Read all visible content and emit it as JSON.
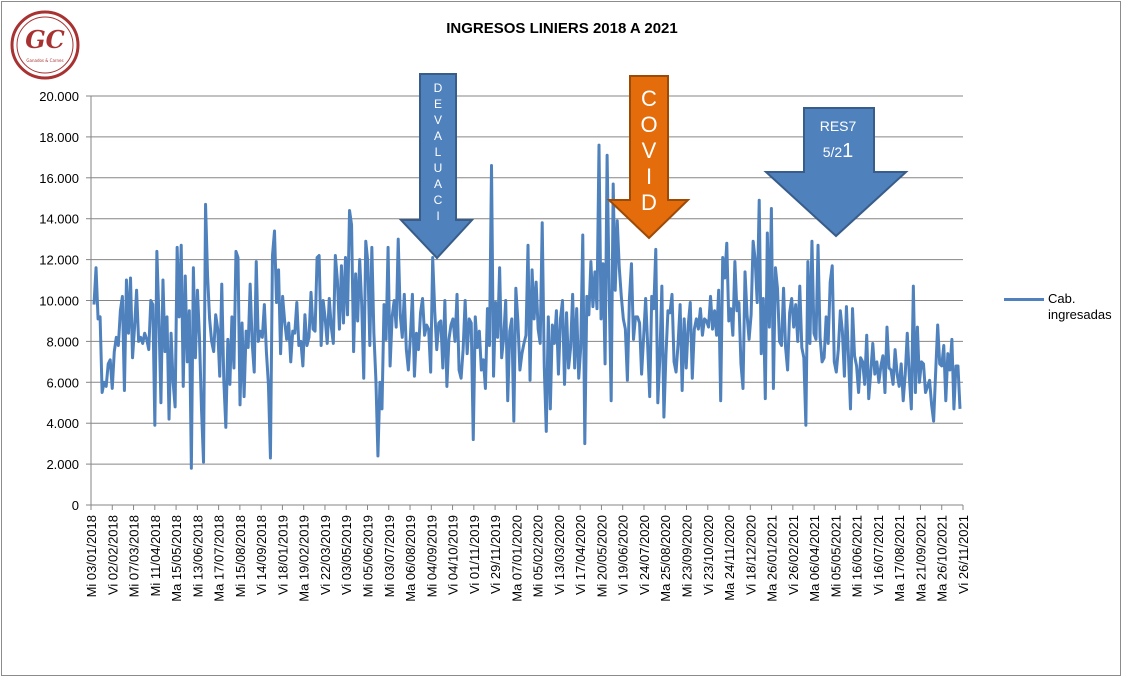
{
  "logo": {
    "text": "GC",
    "subtitle": "Ganados & Carnes",
    "color": "#a83232"
  },
  "chart_data": {
    "type": "line",
    "title": "INGRESOS LINIERS  2018 A 2021",
    "xlabel": "",
    "ylabel": "",
    "ylim": [
      0,
      20000
    ],
    "yticks": [
      "0",
      "2.000",
      "4.000",
      "6.000",
      "8.000",
      "10.000",
      "12.000",
      "14.000",
      "16.000",
      "18.000",
      "20.000"
    ],
    "grid": true,
    "legend": "right",
    "xticks": [
      "Mi 03/01/2018",
      "Vi 02/02/2018",
      "Mi 07/03/2018",
      "Mi 11/04/2018",
      "Ma 15/05/2018",
      "Mi 13/06/2018",
      "Ma 17/07/2018",
      "Mi 15/08/2018",
      "Vi 14/09/2018",
      "Vi 18/01/2019",
      "Ma 19/02/2019",
      "Vi 22/03/2019",
      "Vi 03/05/2019",
      "Mi 05/06/2019",
      "Mi 03/07/2019",
      "Ma 06/08/2019",
      "Mi 04/09/2019",
      "Vi 04/10/2019",
      "Vi 01/11/2019",
      "Vi 29/11/2019",
      "Ma 07/01/2020",
      "Mi 05/02/2020",
      "Vi 13/03/2020",
      "Vi 17/04/2020",
      "Mi 20/05/2020",
      "Vi 19/06/2020",
      "Vi 24/07/2020",
      "Ma 25/08/2020",
      "Mi 23/09/2020",
      "Vi 23/10/2020",
      "Ma 24/11/2020",
      "Vi 18/12/2020",
      "Ma 26/01/2021",
      "Vi 26/02/2021",
      "Ma 06/04/2021",
      "Mi 05/05/2021",
      "Mi 16/06/2021",
      "Vi 16/07/2021",
      "Ma 17/08/2021",
      "Ma 21/09/2021",
      "Ma 26/10/2021",
      "Vi 26/11/2021"
    ],
    "series": [
      {
        "name": "Cab. ingresadas",
        "color": "#4f81bd",
        "values": [
          9800,
          11600,
          9100,
          9200,
          5500,
          6000,
          5800,
          6900,
          7100,
          5700,
          7500,
          8200,
          7800,
          9500,
          10200,
          5600,
          11000,
          8400,
          11100,
          7200,
          8700,
          10500,
          8000,
          8200,
          7900,
          8400,
          8100,
          7600,
          10000,
          9800,
          3900,
          12400,
          9200,
          5000,
          11000,
          7500,
          9200,
          4200,
          8400,
          6000,
          4800,
          12600,
          9200,
          12700,
          5800,
          11200,
          7000,
          9500,
          1800,
          11600,
          7200,
          10500,
          8200,
          4700,
          2100,
          14700,
          11200,
          9100,
          8000,
          7500,
          9300,
          8600,
          6300,
          10800,
          6100,
          3800,
          8100,
          5900,
          9200,
          6700,
          12400,
          12100,
          4900,
          8900,
          5300,
          8500,
          7700,
          10800,
          7900,
          6500,
          11900,
          8000,
          8500,
          8200,
          9800,
          7500,
          5900,
          2300,
          12200,
          13400,
          9900,
          11500,
          7400,
          10200,
          9000,
          8100,
          8900,
          7000,
          8500,
          8400,
          9900,
          7800,
          8000,
          6800,
          9300,
          7800,
          8200,
          10400,
          8600,
          8500,
          12100,
          12200,
          7800,
          10000,
          9100,
          7900,
          10100,
          8700,
          7900,
          12200,
          11000,
          8600,
          11700,
          8900,
          12100,
          9300,
          14400,
          13700,
          7500,
          11300,
          9000,
          12000,
          9800,
          6200,
          12900,
          11900,
          7800,
          12600,
          8400,
          6100,
          2400,
          6000,
          4700,
          9800,
          8100,
          12600,
          6800,
          9200,
          10000,
          8700,
          13000,
          9300,
          8200,
          10300,
          7600,
          6600,
          8200,
          10300,
          6300,
          8400,
          7600,
          9400,
          10100,
          8300,
          8800,
          8600,
          6500,
          12100,
          9500,
          7600,
          8900,
          9000,
          6700,
          10000,
          5800,
          8100,
          8800,
          9100,
          8000,
          10300,
          6600,
          6200,
          7600,
          10000,
          7400,
          9100,
          8900,
          3200,
          9200,
          7700,
          8500,
          6600,
          7100,
          5700,
          9600,
          7800,
          16600,
          6300,
          9900,
          8200,
          11600,
          7200,
          8200,
          10000,
          5100,
          8500,
          9100,
          4100,
          10600,
          9000,
          6600,
          7400,
          7900,
          8300,
          12700,
          6100,
          11500,
          9100,
          10900,
          8600,
          7900,
          13800,
          6800,
          3600,
          9200,
          4700,
          8800,
          7900,
          9500,
          6400,
          9100,
          10000,
          5900,
          9400,
          6700,
          7700,
          10300,
          6700,
          9600,
          6200,
          7700,
          13200,
          3000,
          10200,
          9300,
          11900,
          9700,
          11400,
          9600,
          17600,
          9100,
          11800,
          6900,
          17100,
          10500,
          5100,
          15700,
          10500,
          13900,
          11600,
          10200,
          9100,
          8600,
          6100,
          10100,
          11800,
          8100,
          9200,
          9200,
          8900,
          6400,
          8200,
          10100,
          7800,
          5300,
          10200,
          9600,
          12500,
          5000,
          7200,
          10700,
          4300,
          7300,
          9500,
          9400,
          10300,
          7000,
          6500,
          7900,
          9800,
          5600,
          9100,
          6700,
          8800,
          9900,
          6200,
          8600,
          9100,
          8600,
          9600,
          8300,
          9100,
          9000,
          8700,
          10200,
          8600,
          9500,
          8300,
          10500,
          5100,
          12100,
          11100,
          12800,
          9000,
          9600,
          8300,
          11900,
          9500,
          9900,
          6900,
          5700,
          11400,
          9300,
          8100,
          9300,
          12900,
          12000,
          9900,
          14900,
          7400,
          10100,
          5200,
          13300,
          8700,
          14500,
          5700,
          11600,
          10600,
          8000,
          7800,
          10600,
          7700,
          6600,
          9400,
          10100,
          8700,
          9800,
          8000,
          10700,
          7700,
          7200,
          3900,
          11900,
          7900,
          12900,
          8400,
          8100,
          12700,
          8200,
          7000,
          7200,
          9200,
          7900,
          10900,
          11700,
          7000,
          6500,
          7600,
          9500,
          8500,
          6300,
          9700,
          7300,
          4700,
          9600,
          7300,
          6800,
          5500,
          7200,
          7000,
          5900,
          8300,
          5200,
          6500,
          7900,
          6400,
          7000,
          6000,
          6800,
          7300,
          5500,
          8700,
          6700,
          6600,
          5900,
          7600,
          6400,
          5800,
          6900,
          5100,
          6400,
          8400,
          6300,
          4700,
          10700,
          5500,
          8700,
          6000,
          7000,
          6900,
          5500,
          5800,
          6100,
          4900,
          4100,
          6500,
          8800,
          6900,
          6800,
          7800,
          5100,
          7400,
          6600,
          8100,
          4700,
          6800,
          6800,
          4700
        ]
      }
    ]
  },
  "annotations": [
    {
      "id": "devaluacion",
      "label": "DEVALUACI",
      "color": "#4f81bd",
      "text_color": "#ffffff"
    },
    {
      "id": "covid",
      "label": "COVID",
      "color": "#e46c0a",
      "text_color": "#ffffff"
    },
    {
      "id": "res7",
      "label_line1": "RES7",
      "label_line2a": "5/2",
      "label_line2b": "1",
      "color": "#4f81bd",
      "text_color": "#ffffff"
    }
  ]
}
